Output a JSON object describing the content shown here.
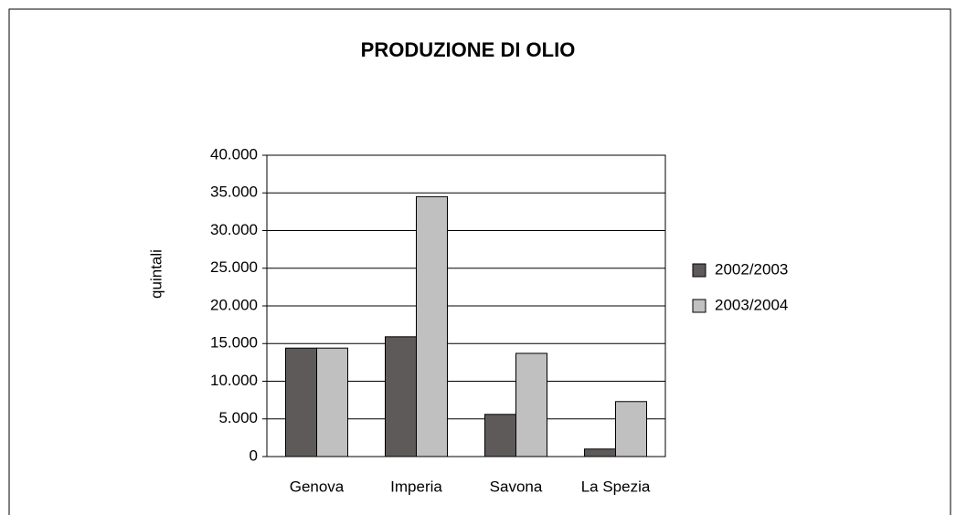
{
  "chart_data": {
    "type": "bar",
    "title": "PRODUZIONE DI OLIO",
    "ylabel": "quintali",
    "categories": [
      "Genova",
      "Imperia",
      "Savona",
      "La Spezia"
    ],
    "series": [
      {
        "name": "2002/2003",
        "color": "#5f5a5a",
        "values": [
          14400,
          15900,
          5600,
          1000
        ]
      },
      {
        "name": "2003/2004",
        "color": "#c0c0c0",
        "values": [
          14400,
          34500,
          13700,
          7300
        ]
      }
    ],
    "ylim": [
      0,
      40000
    ],
    "yticks": [
      0,
      {
        "value": 5000,
        "label": "5.000"
      },
      {
        "value": 10000,
        "label": "10.000"
      },
      {
        "value": 15000,
        "label": "15.000"
      },
      {
        "value": 20000,
        "label": "20.000"
      },
      {
        "value": 25000,
        "label": "25.000"
      },
      {
        "value": 30000,
        "label": "30.000"
      },
      {
        "value": 35000,
        "label": "35.000"
      },
      {
        "value": 40000,
        "label": "40.000"
      }
    ],
    "grid": true,
    "legend": "right"
  }
}
